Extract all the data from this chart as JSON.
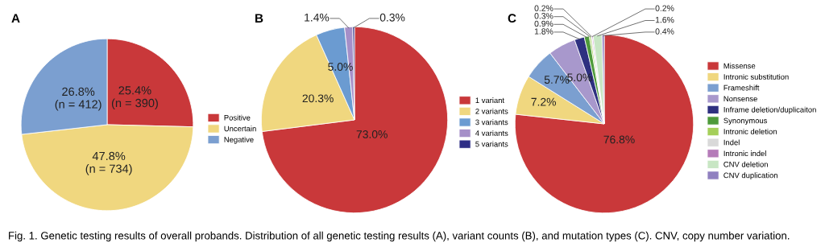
{
  "chart_data": [
    {
      "type": "pie",
      "title": "A",
      "categories": [
        "Positive",
        "Uncertain",
        "Negative"
      ],
      "values": [
        25.4,
        47.8,
        26.8
      ],
      "colors": [
        "#c9383a",
        "#f0d77f",
        "#7b9fd0"
      ],
      "value_labels": [
        "25.4%\n(n = 390)",
        "47.8%\n(n = 734)",
        "26.8%\n(n = 412)"
      ],
      "legend": "right",
      "annotations": [
        "Fig. 1. Genetic testing results of overall probands. Distribution of all genetic testing results (A), variant counts (B), and mutation types (C). CNV, copy number variation."
      ]
    },
    {
      "type": "pie",
      "title": "B",
      "categories": [
        "1 variant",
        "2 variants",
        "3 variants",
        "4 variants",
        "5 variants"
      ],
      "values": [
        73.0,
        20.3,
        5.0,
        1.4,
        0.3
      ],
      "colors": [
        "#c9383a",
        "#f0d77f",
        "#6b9bd1",
        "#a58fc8",
        "#2e2e86"
      ],
      "value_labels": [
        "73.0%",
        "20.3%",
        "5.0%",
        "1.4%",
        "0.3%"
      ],
      "legend": "right"
    },
    {
      "type": "pie",
      "title": "C",
      "categories": [
        "Missense",
        "Intronic substitution",
        "Frameshift",
        "Nonsense",
        "Inframe deletion/duplicaiton",
        "Synonymous",
        "Intronic deletion",
        "Indel",
        "Intronic indel",
        "CNV deletion",
        "CNV duplication"
      ],
      "values": [
        76.8,
        7.2,
        5.7,
        5.0,
        1.8,
        0.9,
        0.3,
        0.2,
        0.2,
        1.6,
        0.4
      ],
      "colors": [
        "#c9383a",
        "#f0d77f",
        "#7b9fd0",
        "#a898cc",
        "#2e3080",
        "#4e9a3a",
        "#a5cf5a",
        "#d9d9d9",
        "#b57bb9",
        "#c8e6c4",
        "#9080c0"
      ],
      "value_labels": [
        "76.8%",
        "7.2%",
        "5.7%",
        "5.0%",
        "1.8%",
        "0.9%",
        "0.3%",
        "0.2%",
        "0.2%",
        "1.6%",
        "0.4%"
      ],
      "legend": "right"
    }
  ]
}
